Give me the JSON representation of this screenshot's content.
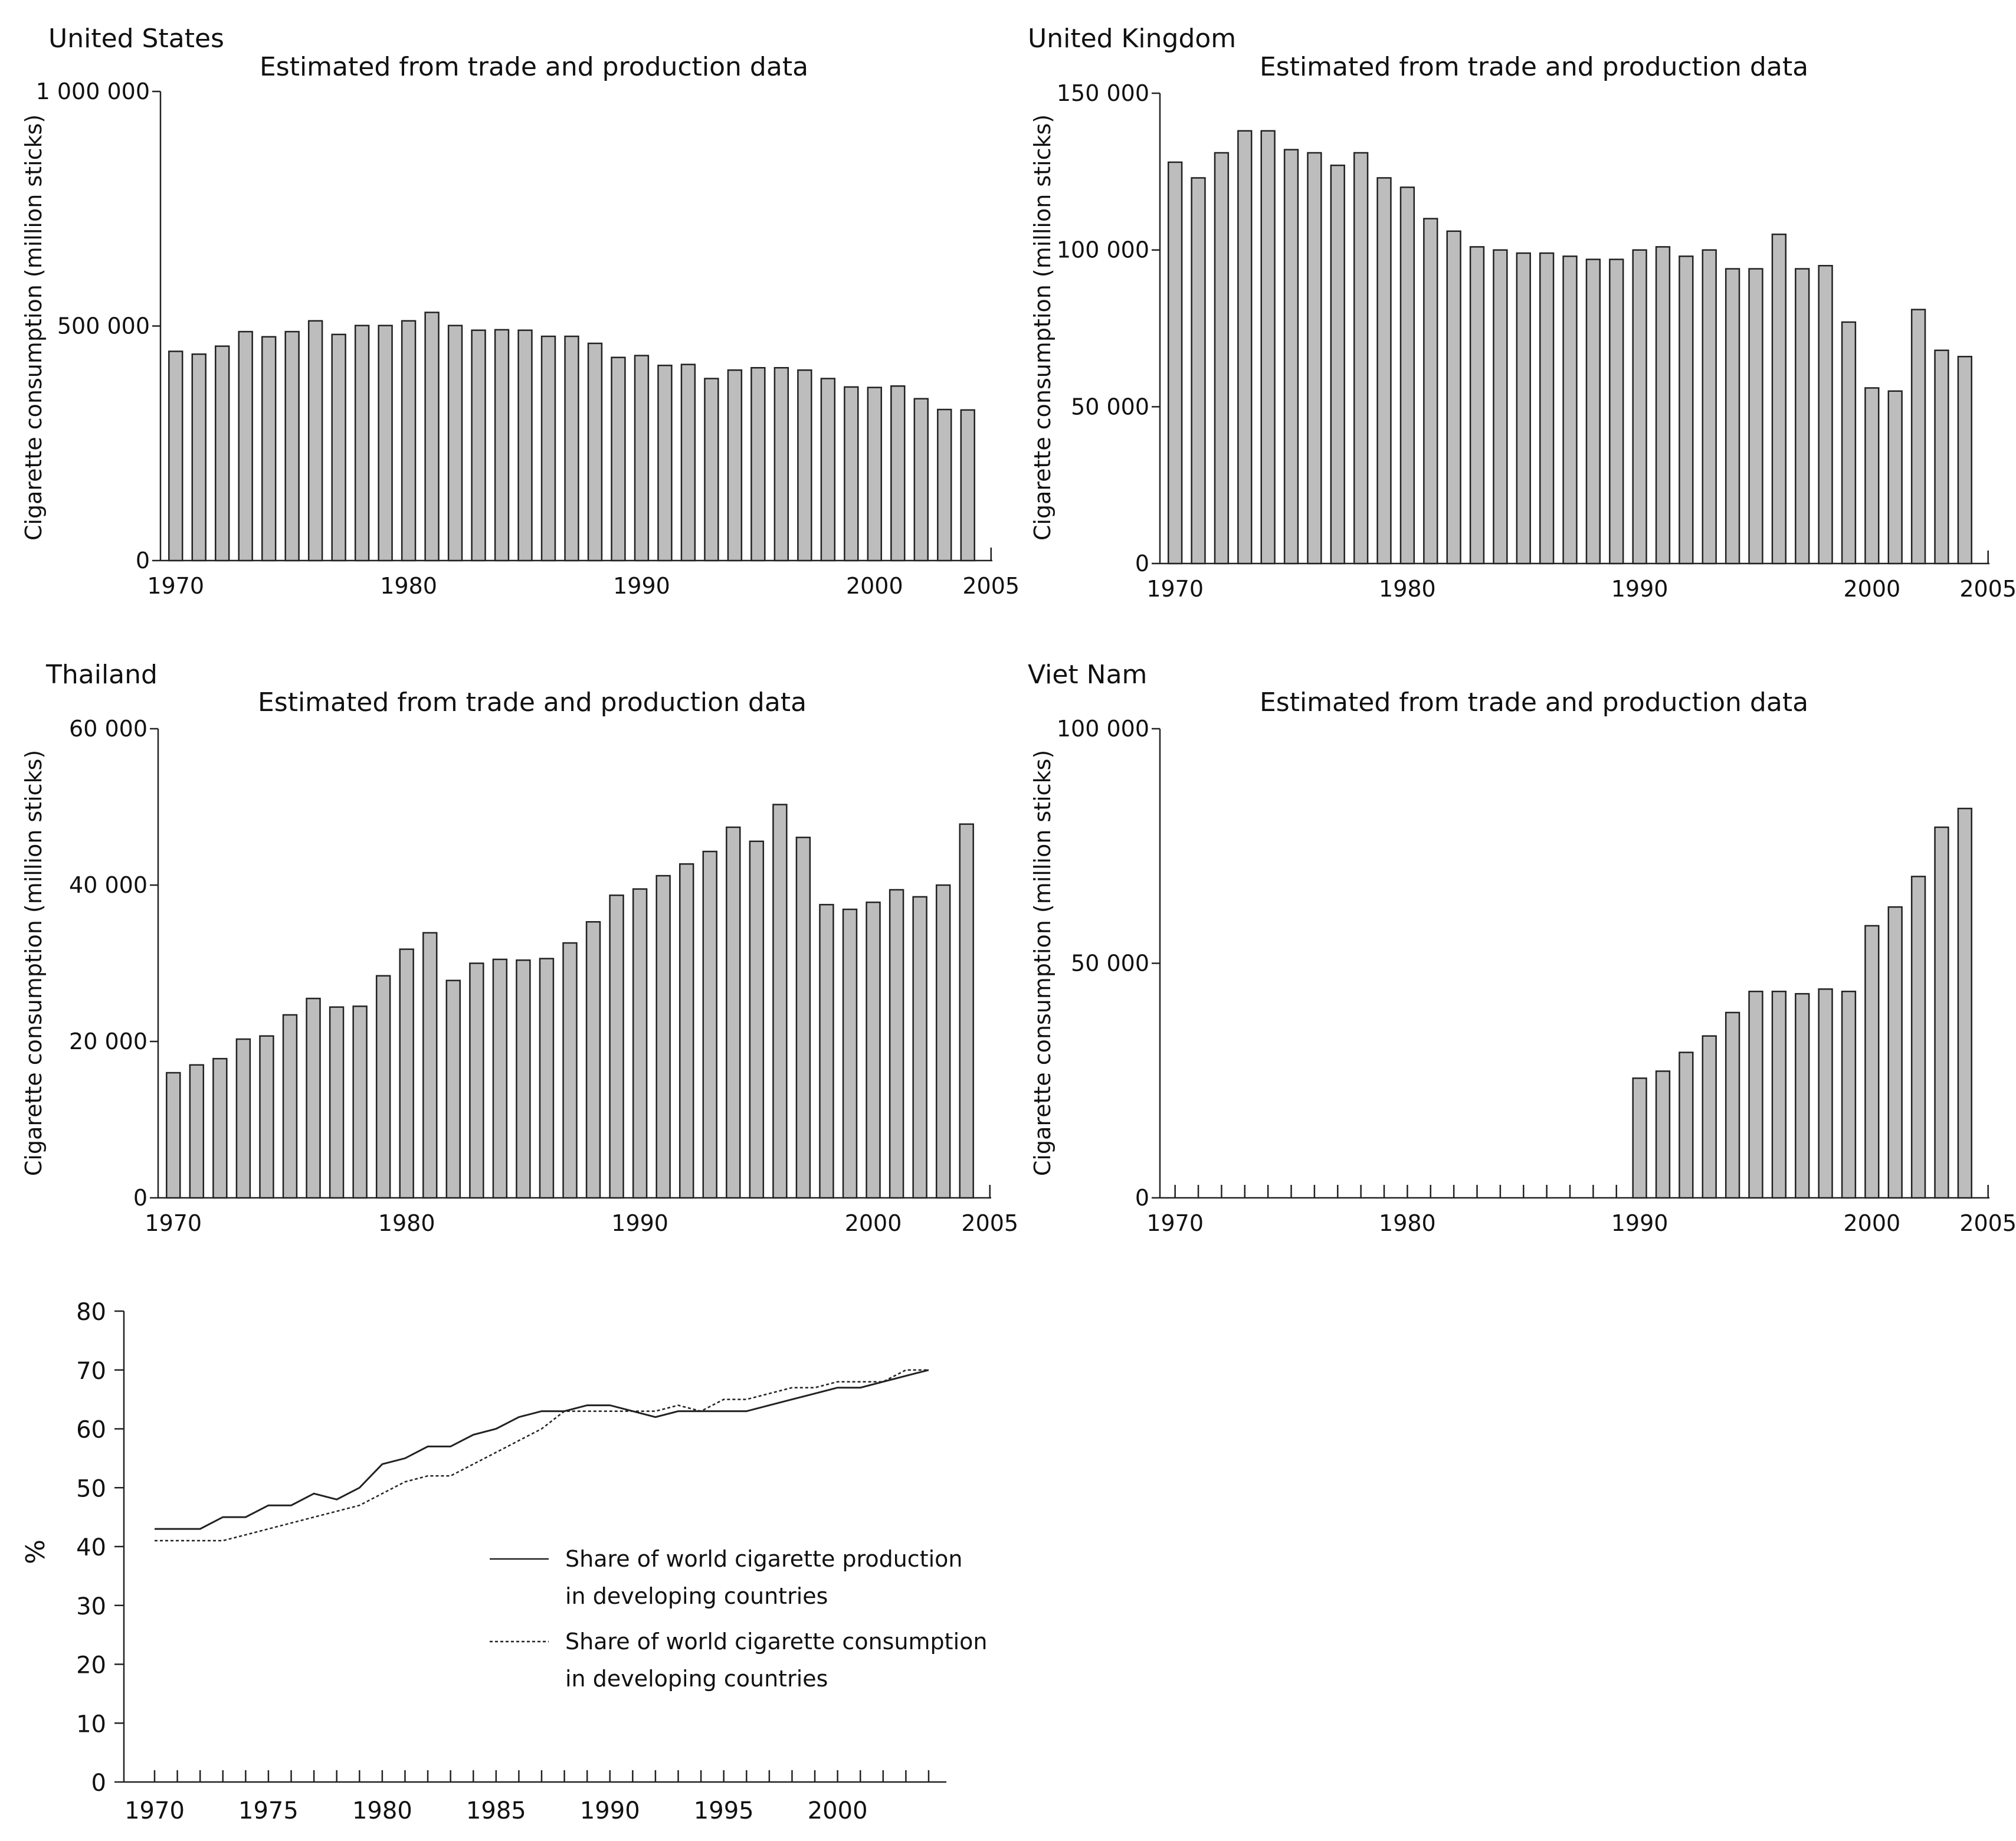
{
  "chart_data": [
    {
      "type": "bar",
      "country": "United States",
      "subtitle": "Estimated from trade and production data",
      "ylabel": "Cigarette consumption (million sticks)",
      "ylim": [
        0,
        1000000
      ],
      "yticks": [
        {
          "v": 0,
          "label": "0"
        },
        {
          "v": 500000,
          "label": "500 000"
        },
        {
          "v": 1000000,
          "label": "1 000 000"
        }
      ],
      "xlim": [
        1970,
        2005
      ],
      "xticks": [
        {
          "v": 1970,
          "label": "1970"
        },
        {
          "v": 1980,
          "label": "1980"
        },
        {
          "v": 1990,
          "label": "1990"
        },
        {
          "v": 2000,
          "label": "2000"
        },
        {
          "v": 2005,
          "label": "2005"
        }
      ],
      "x": [
        1970,
        1971,
        1972,
        1973,
        1974,
        1975,
        1976,
        1977,
        1978,
        1979,
        1980,
        1981,
        1982,
        1983,
        1984,
        1985,
        1986,
        1987,
        1988,
        1989,
        1990,
        1991,
        1992,
        1993,
        1994,
        1995,
        1996,
        1997,
        1998,
        1999,
        2000,
        2001,
        2002,
        2003,
        2004
      ],
      "values": [
        446000,
        440000,
        457000,
        488000,
        477000,
        488000,
        511000,
        482000,
        501000,
        501000,
        511000,
        529000,
        501000,
        491000,
        492000,
        491000,
        478000,
        478000,
        463000,
        433000,
        437000,
        416000,
        418000,
        388000,
        406000,
        411000,
        411000,
        406000,
        388000,
        370000,
        369000,
        372000,
        345000,
        322000,
        321000
      ]
    },
    {
      "type": "bar",
      "country": "United Kingdom",
      "subtitle": "Estimated from trade and production data",
      "ylabel": "Cigarette consumption (million sticks)",
      "ylim": [
        0,
        150000
      ],
      "yticks": [
        {
          "v": 0,
          "label": "0"
        },
        {
          "v": 50000,
          "label": "50 000"
        },
        {
          "v": 100000,
          "label": "100 000"
        },
        {
          "v": 150000,
          "label": "150 000"
        }
      ],
      "xlim": [
        1970,
        2005
      ],
      "xticks": [
        {
          "v": 1970,
          "label": "1970"
        },
        {
          "v": 1980,
          "label": "1980"
        },
        {
          "v": 1990,
          "label": "1990"
        },
        {
          "v": 2000,
          "label": "2000"
        },
        {
          "v": 2005,
          "label": "2005"
        }
      ],
      "x": [
        1970,
        1971,
        1972,
        1973,
        1974,
        1975,
        1976,
        1977,
        1978,
        1979,
        1980,
        1981,
        1982,
        1983,
        1984,
        1985,
        1986,
        1987,
        1988,
        1989,
        1990,
        1991,
        1992,
        1993,
        1994,
        1995,
        1996,
        1997,
        1998,
        1999,
        2000,
        2001,
        2002,
        2003,
        2004
      ],
      "values": [
        128000,
        123000,
        131000,
        138000,
        138000,
        132000,
        131000,
        127000,
        131000,
        123000,
        120000,
        110000,
        106000,
        101000,
        100000,
        99000,
        99000,
        98000,
        97000,
        97000,
        100000,
        101000,
        98000,
        100000,
        94000,
        94000,
        105000,
        94000,
        95000,
        77000,
        56000,
        55000,
        81000,
        68000,
        66000
      ]
    },
    {
      "type": "bar",
      "country": "Thailand",
      "subtitle": "Estimated from trade and production data",
      "ylabel": "Cigarette consumption (million sticks)",
      "ylim": [
        0,
        60000
      ],
      "yticks": [
        {
          "v": 0,
          "label": "0"
        },
        {
          "v": 20000,
          "label": "20 000"
        },
        {
          "v": 40000,
          "label": "40 000"
        },
        {
          "v": 60000,
          "label": "60 000"
        }
      ],
      "xlim": [
        1970,
        2005
      ],
      "xticks": [
        {
          "v": 1970,
          "label": "1970"
        },
        {
          "v": 1980,
          "label": "1980"
        },
        {
          "v": 1990,
          "label": "1990"
        },
        {
          "v": 2000,
          "label": "2000"
        },
        {
          "v": 2005,
          "label": "2005"
        }
      ],
      "x": [
        1970,
        1971,
        1972,
        1973,
        1974,
        1975,
        1976,
        1977,
        1978,
        1979,
        1980,
        1981,
        1982,
        1983,
        1984,
        1985,
        1986,
        1987,
        1988,
        1989,
        1990,
        1991,
        1992,
        1993,
        1994,
        1995,
        1996,
        1997,
        1998,
        1999,
        2000,
        2001,
        2002,
        2003,
        2004
      ],
      "values": [
        16000,
        17000,
        17800,
        20300,
        20700,
        23400,
        25500,
        24400,
        24500,
        28400,
        31800,
        33900,
        27800,
        30000,
        30500,
        30400,
        30600,
        32600,
        35300,
        38700,
        39500,
        41200,
        42700,
        44300,
        47400,
        45600,
        50300,
        46100,
        37500,
        36900,
        37800,
        39400,
        38500,
        40000,
        47800
      ]
    },
    {
      "type": "bar",
      "country": "Viet Nam",
      "subtitle": "Estimated from trade and production data",
      "ylabel": "Cigarette consumption (million sticks)",
      "ylim": [
        0,
        100000
      ],
      "yticks": [
        {
          "v": 0,
          "label": "0"
        },
        {
          "v": 50000,
          "label": "50 000"
        },
        {
          "v": 100000,
          "label": "100 000"
        }
      ],
      "xlim": [
        1970,
        2005
      ],
      "xticks": [
        {
          "v": 1970,
          "label": "1970"
        },
        {
          "v": 1980,
          "label": "1980"
        },
        {
          "v": 1990,
          "label": "1990"
        },
        {
          "v": 2000,
          "label": "2000"
        },
        {
          "v": 2005,
          "label": "2005"
        }
      ],
      "x": [
        1990,
        1991,
        1992,
        1993,
        1994,
        1995,
        1996,
        1997,
        1998,
        1999,
        2000,
        2001,
        2002,
        2003,
        2004
      ],
      "values": [
        25500,
        27000,
        31000,
        34500,
        39500,
        44000,
        44000,
        43500,
        44500,
        44000,
        58000,
        62000,
        68500,
        79000,
        83000
      ]
    },
    {
      "type": "line",
      "ylabel": "%",
      "ylim": [
        0,
        80
      ],
      "yticks": [
        0,
        10,
        20,
        30,
        40,
        50,
        60,
        70,
        80
      ],
      "xlim": [
        1970,
        2004
      ],
      "xticks": [
        1970,
        1975,
        1980,
        1985,
        1990,
        1995,
        2000
      ],
      "x": [
        1970,
        1971,
        1972,
        1973,
        1974,
        1975,
        1976,
        1977,
        1978,
        1979,
        1980,
        1981,
        1982,
        1983,
        1984,
        1985,
        1986,
        1987,
        1988,
        1989,
        1990,
        1991,
        1992,
        1993,
        1994,
        1995,
        1996,
        1997,
        1998,
        1999,
        2000,
        2001,
        2002,
        2003,
        2004
      ],
      "series": [
        {
          "name": "Share of world cigarette production in developing countries",
          "legend_lines": [
            "Share of world cigarette production",
            "in developing countries"
          ],
          "style": "solid",
          "values": [
            43,
            43,
            43,
            45,
            45,
            47,
            47,
            49,
            48,
            50,
            54,
            55,
            57,
            57,
            59,
            60,
            62,
            63,
            63,
            64,
            64,
            63,
            62,
            63,
            63,
            63,
            63,
            64,
            65,
            66,
            67,
            67,
            68,
            69,
            70
          ]
        },
        {
          "name": "Share of world cigarette consumption in developing countries",
          "legend_lines": [
            "Share of world cigarette consumption",
            "in developing countries"
          ],
          "style": "dotted",
          "values": [
            41,
            41,
            41,
            41,
            42,
            43,
            44,
            45,
            46,
            47,
            49,
            51,
            52,
            52,
            54,
            56,
            58,
            60,
            63,
            63,
            63,
            63,
            63,
            64,
            63,
            65,
            65,
            66,
            67,
            67,
            68,
            68,
            68,
            70,
            70
          ]
        }
      ]
    }
  ]
}
